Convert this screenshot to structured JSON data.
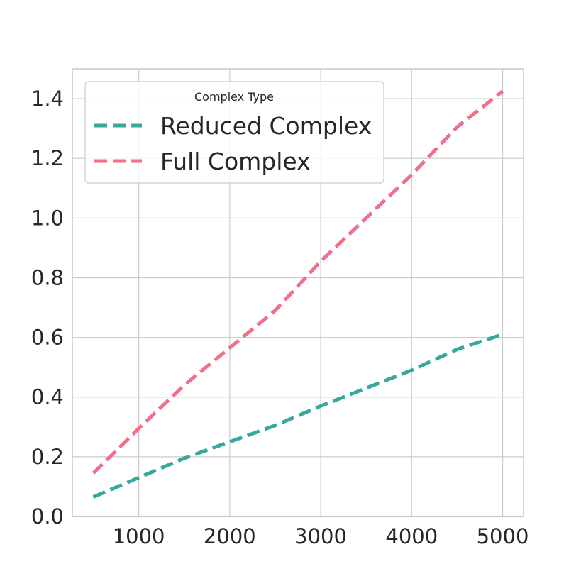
{
  "chart_data": {
    "type": "line",
    "title": "",
    "xlabel": "",
    "ylabel": "",
    "xlim": [
      270,
      5230
    ],
    "ylim": [
      0,
      1.5
    ],
    "x_ticks": [
      1000,
      2000,
      3000,
      4000,
      5000
    ],
    "y_ticks": [
      0.0,
      0.2,
      0.4,
      0.6,
      0.8,
      1.0,
      1.2,
      1.4
    ],
    "x_tick_labels": [
      "1000",
      "2000",
      "3000",
      "4000",
      "5000"
    ],
    "y_tick_labels": [
      "0.0",
      "0.2",
      "0.4",
      "0.6",
      "0.8",
      "1.0",
      "1.2",
      "1.4"
    ],
    "grid": true,
    "legend": {
      "title": "Complex Type",
      "placement": "top-left"
    },
    "x": [
      500,
      1000,
      1500,
      2000,
      2500,
      3000,
      3500,
      4000,
      4500,
      5000
    ],
    "series": [
      {
        "name": "Reduced Complex",
        "color": "#36a89c",
        "line_style": "dashed",
        "values": [
          0.065,
          0.13,
          0.195,
          0.25,
          0.305,
          0.37,
          0.43,
          0.49,
          0.56,
          0.61
        ]
      },
      {
        "name": "Full Complex",
        "color": "#f0708a",
        "line_style": "dashed",
        "values": [
          0.145,
          0.295,
          0.44,
          0.565,
          0.69,
          0.855,
          1.0,
          1.145,
          1.305,
          1.425
        ]
      }
    ]
  }
}
